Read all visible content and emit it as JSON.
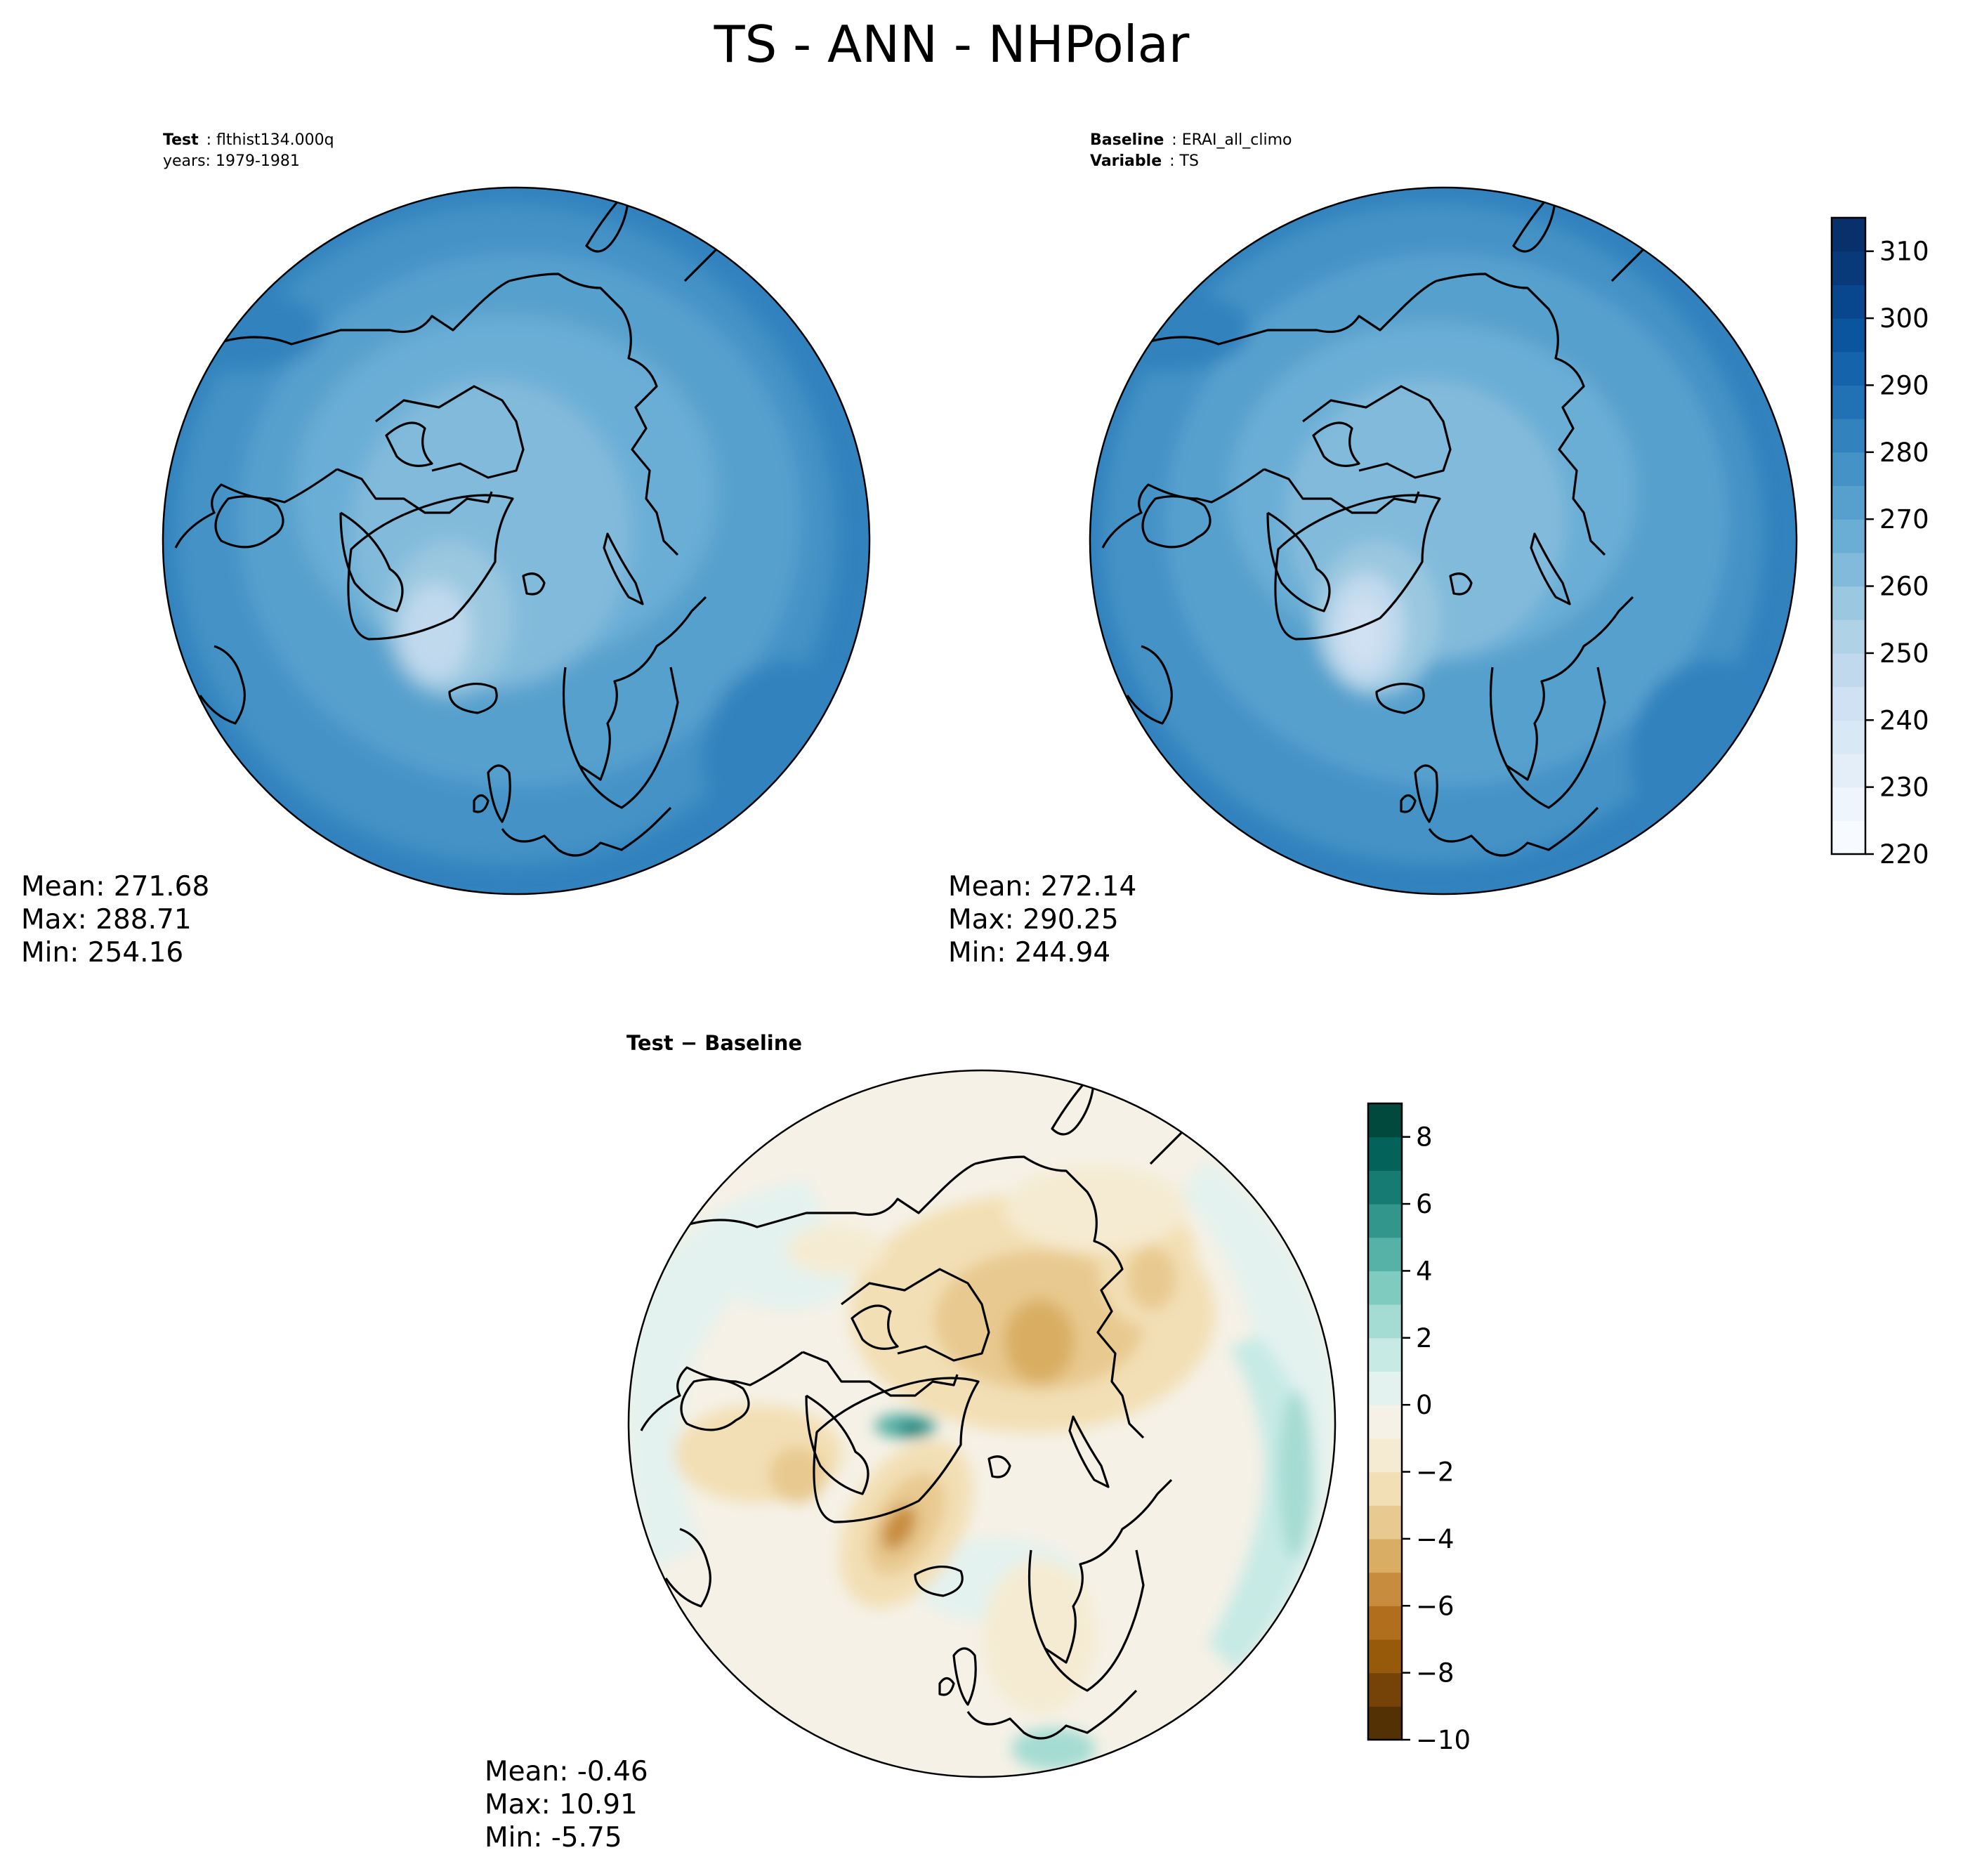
{
  "figure": {
    "title": "TS - ANN - NHPolar"
  },
  "panels": {
    "test": {
      "label_bold": "Test",
      "label_value": "flthist134.000q",
      "years": "years: 1979-1981",
      "stats": {
        "mean": "Mean: 271.68",
        "max": "Max: 288.71",
        "min": "Min: 254.16"
      }
    },
    "baseline": {
      "label_bold": "Baseline",
      "label_value": "ERAI_all_climo",
      "variable_bold": "Variable",
      "variable_value": "TS",
      "stats": {
        "mean": "Mean: 272.14",
        "max": "Max: 290.25",
        "min": "Min: 244.94"
      }
    },
    "diff": {
      "title_a": "Test",
      "title_b": "Baseline",
      "stats": {
        "mean": "Mean: -0.46",
        "max": "Max: 10.91",
        "min": "Min: -5.75"
      }
    }
  },
  "chart_data": [
    {
      "type": "heatmap",
      "title": "Test",
      "projection": "north polar stereographic",
      "variable": "TS",
      "colormap": "Blues",
      "colorbar_range": [
        220,
        315
      ],
      "colorbar_levels": 19,
      "colorbar_ticks": [
        220,
        230,
        240,
        250,
        260,
        270,
        280,
        290,
        300,
        310
      ],
      "stats": {
        "mean": 271.68,
        "max": 288.71,
        "min": 254.16
      }
    },
    {
      "type": "heatmap",
      "title": "Baseline",
      "projection": "north polar stereographic",
      "variable": "TS",
      "colormap": "Blues",
      "colorbar_range": [
        220,
        315
      ],
      "colorbar_levels": 19,
      "colorbar_ticks": [
        220,
        230,
        240,
        250,
        260,
        270,
        280,
        290,
        300,
        310
      ],
      "stats": {
        "mean": 272.14,
        "max": 290.25,
        "min": 244.94
      }
    },
    {
      "type": "heatmap",
      "title": "Test − Baseline",
      "projection": "north polar stereographic",
      "variable": "TS",
      "colormap": "BrBG",
      "colorbar_range": [
        -10,
        9
      ],
      "colorbar_levels": 19,
      "colorbar_ticks": [
        -10,
        -8,
        -6,
        -4,
        -2,
        0,
        2,
        4,
        6,
        8
      ],
      "colorbar_tick_labels": [
        "−10",
        "−8",
        "−6",
        "−4",
        "−2",
        "0",
        "2",
        "4",
        "6",
        "8"
      ],
      "stats": {
        "mean": -0.46,
        "max": 10.91,
        "min": -5.75
      }
    }
  ],
  "colors": {
    "blues": [
      "#f7fbff",
      "#eef5fc",
      "#e3eef9",
      "#d9e8f5",
      "#cfe1f2",
      "#c1d9ed",
      "#b0d2e7",
      "#9ac8e0",
      "#82badb",
      "#6aaed6",
      "#57a0ce",
      "#4592c6",
      "#3282be",
      "#2171b5",
      "#1563aa",
      "#0b559f",
      "#08478d",
      "#083a7a",
      "#08306b"
    ],
    "brbg": [
      "#543005",
      "#754308",
      "#975a0b",
      "#b16f1d",
      "#c78c3e",
      "#d9ae64",
      "#e8c98f",
      "#f3dfb5",
      "#f5ebd2",
      "#f5f1e6",
      "#e4f2ef",
      "#c7eae5",
      "#a4dcd3",
      "#7fcbc0",
      "#56b1a6",
      "#33968d",
      "#167c73",
      "#03625a",
      "#01483d"
    ]
  }
}
